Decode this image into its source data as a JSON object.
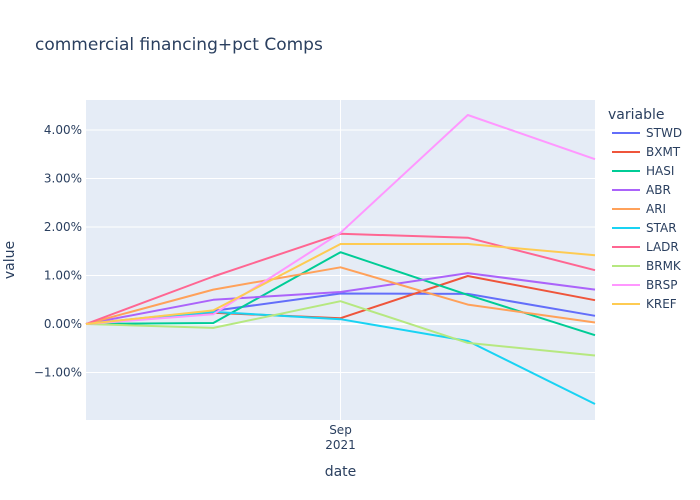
{
  "chart_data": {
    "type": "line",
    "title": "commercial financing+pct Comps",
    "xlabel": "date",
    "ylabel": "value",
    "legend_title": "variable",
    "x_tick_labels": [
      {
        "line1": "Sep",
        "line2": "2021"
      }
    ],
    "y_ticks": [
      -0.01,
      0,
      0.01,
      0.02,
      0.03,
      0.04
    ],
    "y_tick_labels": [
      "−1.00%",
      "0.00%",
      "1.00%",
      "2.00%",
      "3.00%",
      "4.00%"
    ],
    "ylim": [
      -0.0198,
      0.0462
    ],
    "x_points": 5,
    "x_highlight_index": 2,
    "legend_position": "right",
    "background": "#e5ecf6",
    "series": [
      {
        "name": "STWD",
        "color": "#636efa",
        "values": [
          0,
          0.0027,
          0.0063,
          0.0062,
          0.0017
        ]
      },
      {
        "name": "BXMT",
        "color": "#EF553B",
        "values": [
          0,
          0.0023,
          0.0012,
          0.0099,
          0.0049
        ]
      },
      {
        "name": "HASI",
        "color": "#00cc96",
        "values": [
          0,
          0.0002,
          0.0148,
          0.006,
          -0.0023
        ]
      },
      {
        "name": "ABR",
        "color": "#ab63fa",
        "values": [
          0,
          0.005,
          0.0066,
          0.0105,
          0.0071
        ]
      },
      {
        "name": "ARI",
        "color": "#FFA15A",
        "values": [
          0,
          0.0071,
          0.0117,
          0.004,
          0.0003
        ]
      },
      {
        "name": "STAR",
        "color": "#19d3f3",
        "values": [
          0,
          0.0025,
          0.001,
          -0.0035,
          -0.0165
        ]
      },
      {
        "name": "LADR",
        "color": "#FF6692",
        "values": [
          0,
          0.0098,
          0.0186,
          0.0178,
          0.0111
        ]
      },
      {
        "name": "BRMK",
        "color": "#B6E880",
        "values": [
          0,
          -0.0008,
          0.0047,
          -0.0039,
          -0.0065
        ]
      },
      {
        "name": "BRSP",
        "color": "#FF97FF",
        "values": [
          0,
          0.002,
          0.0188,
          0.0431,
          0.034
        ]
      },
      {
        "name": "KREF",
        "color": "#FECB52",
        "values": [
          0,
          0.0028,
          0.0165,
          0.0165,
          0.0142
        ]
      }
    ]
  }
}
